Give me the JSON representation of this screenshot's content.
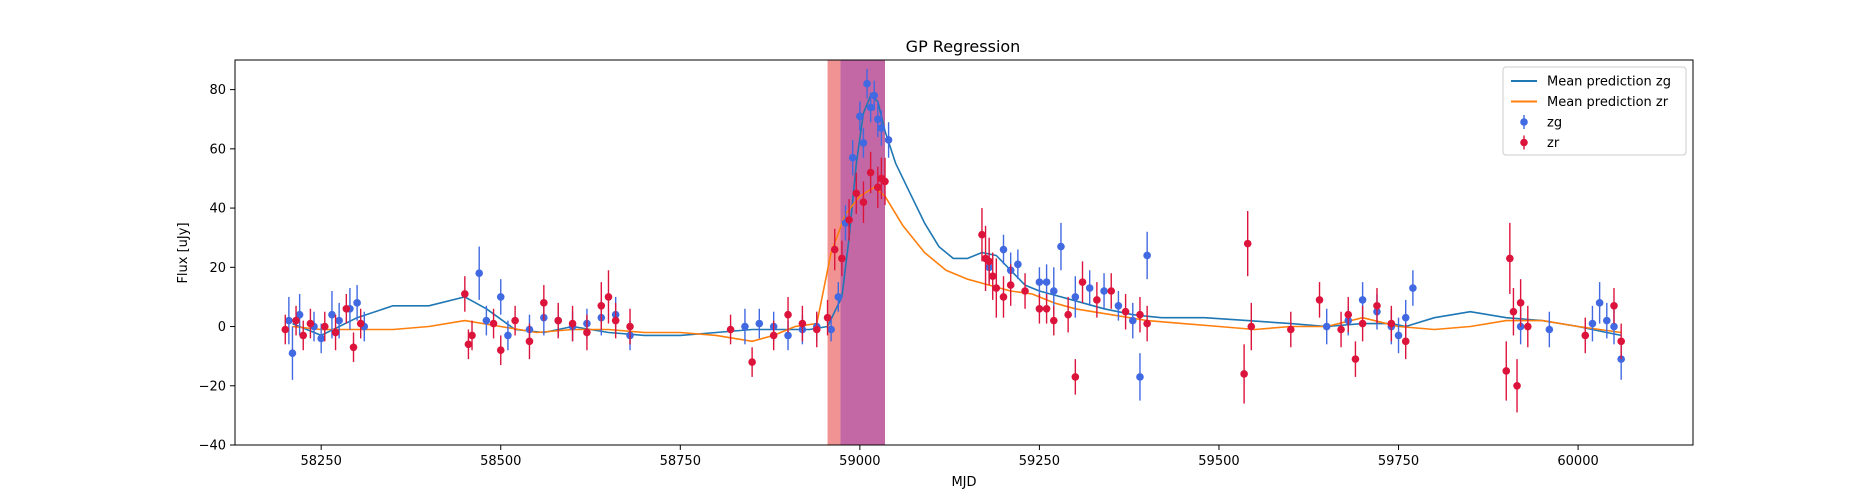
{
  "chart_data": {
    "type": "scatter",
    "title": "GP Regression",
    "xlabel": "MJD",
    "ylabel": "Flux [uJy]",
    "xlim": [
      58130,
      60160
    ],
    "ylim": [
      -40,
      90
    ],
    "xticks": [
      58250,
      58500,
      58750,
      59000,
      59250,
      59500,
      59750,
      60000
    ],
    "yticks": [
      -40,
      -20,
      0,
      20,
      40,
      60,
      80
    ],
    "grid": false,
    "legend": "top-right",
    "shaded_regions": [
      {
        "x0": 58955,
        "x1": 58973,
        "color": "#f08080",
        "opacity": 0.85
      },
      {
        "x0": 58973,
        "x1": 59035,
        "color": "#c060a0",
        "opacity": 0.95
      }
    ],
    "series": [
      {
        "name": "Mean prediction zg",
        "kind": "line",
        "color": "#1f77b4",
        "x": [
          58210,
          58250,
          58300,
          58350,
          58400,
          58450,
          58480,
          58520,
          58560,
          58600,
          58650,
          58700,
          58750,
          58800,
          58850,
          58900,
          58930,
          58955,
          58975,
          58985,
          58995,
          59005,
          59015,
          59025,
          59035,
          59050,
          59070,
          59090,
          59110,
          59130,
          59150,
          59170,
          59190,
          59210,
          59230,
          59250,
          59280,
          59310,
          59340,
          59380,
          59420,
          59480,
          59540,
          59600,
          59650,
          59700,
          59740,
          59760,
          59800,
          59850,
          59900,
          59950,
          60000,
          60040,
          60060
        ],
        "y": [
          1,
          -3,
          3,
          7,
          7,
          10,
          6,
          -1,
          -2,
          0,
          -2,
          -3,
          -3,
          -2,
          -1,
          -1,
          -1,
          0,
          10,
          30,
          55,
          72,
          78,
          76,
          66,
          55,
          45,
          35,
          27,
          23,
          23,
          25,
          24,
          19,
          14,
          12,
          10,
          8,
          6,
          4,
          3,
          3,
          2,
          1,
          0,
          1,
          1,
          0,
          3,
          5,
          3,
          2,
          0,
          -2,
          -3
        ]
      },
      {
        "name": "Mean prediction zr",
        "kind": "line",
        "color": "#ff7f0e",
        "x": [
          58210,
          58250,
          58300,
          58350,
          58400,
          58450,
          58500,
          58550,
          58600,
          58650,
          58700,
          58750,
          58800,
          58850,
          58880,
          58910,
          58940,
          58960,
          58980,
          59000,
          59020,
          59035,
          59060,
          59090,
          59120,
          59150,
          59180,
          59210,
          59240,
          59270,
          59300,
          59350,
          59400,
          59450,
          59500,
          59550,
          59600,
          59650,
          59700,
          59750,
          59800,
          59850,
          59900,
          59950,
          60000,
          60060
        ],
        "y": [
          0,
          -1,
          -1,
          -1,
          0,
          2,
          0,
          -2,
          -1,
          -1,
          -2,
          -2,
          -3,
          -5,
          -3,
          0,
          1,
          25,
          38,
          44,
          47,
          44,
          34,
          25,
          19,
          16,
          14,
          12,
          11,
          8,
          6,
          4,
          2,
          1,
          0,
          -1,
          0,
          0,
          3,
          0,
          -1,
          0,
          2,
          2,
          0,
          -2
        ]
      },
      {
        "name": "zg",
        "kind": "errorbar",
        "color": "#4169e1",
        "x": [
          58205,
          58210,
          58220,
          58240,
          58250,
          58265,
          58275,
          58290,
          58300,
          58310,
          58470,
          58480,
          58500,
          58510,
          58540,
          58560,
          58580,
          58600,
          58620,
          58640,
          58660,
          58680,
          58840,
          58860,
          58880,
          58900,
          58920,
          58940,
          58960,
          58970,
          58980,
          58990,
          59000,
          59005,
          59010,
          59015,
          59020,
          59025,
          59030,
          59040,
          59180,
          59200,
          59210,
          59220,
          59250,
          59260,
          59270,
          59280,
          59300,
          59320,
          59340,
          59360,
          59380,
          59390,
          59400,
          59650,
          59680,
          59700,
          59720,
          59740,
          59750,
          59760,
          59770,
          59920,
          59960,
          60020,
          60030,
          60040,
          60050,
          60060
        ],
        "y": [
          2,
          -9,
          4,
          0,
          -4,
          4,
          2,
          6,
          8,
          0,
          18,
          2,
          10,
          -3,
          -1,
          3,
          2,
          0,
          1,
          3,
          4,
          -3,
          0,
          1,
          0,
          -3,
          -1,
          0,
          -1,
          10,
          35,
          57,
          71,
          62,
          82,
          74,
          78,
          70,
          67,
          63,
          20,
          26,
          19,
          21,
          15,
          15,
          12,
          27,
          10,
          13,
          12,
          7,
          2,
          -17,
          24,
          0,
          2,
          9,
          5,
          0,
          -3,
          3,
          13,
          0,
          -1,
          1,
          8,
          2,
          0,
          -11
        ],
        "err": [
          8,
          9,
          7,
          5,
          5,
          8,
          6,
          7,
          6,
          5,
          9,
          5,
          6,
          5,
          5,
          6,
          5,
          5,
          5,
          6,
          6,
          5,
          6,
          5,
          5,
          5,
          5,
          5,
          4,
          5,
          6,
          6,
          5,
          5,
          5,
          5,
          5,
          6,
          6,
          6,
          5,
          5,
          6,
          5,
          5,
          6,
          8,
          8,
          7,
          6,
          6,
          5,
          6,
          8,
          8,
          6,
          5,
          6,
          6,
          6,
          6,
          6,
          6,
          6,
          6,
          6,
          7,
          6,
          6,
          7
        ]
      },
      {
        "name": "zr",
        "kind": "errorbar",
        "color": "#dc143c",
        "x": [
          58200,
          58215,
          58225,
          58235,
          58255,
          58270,
          58285,
          58295,
          58305,
          58450,
          58455,
          58460,
          58490,
          58500,
          58520,
          58540,
          58560,
          58580,
          58600,
          58620,
          58640,
          58650,
          58660,
          58680,
          58820,
          58850,
          58880,
          58900,
          58920,
          58940,
          58955,
          58965,
          58975,
          58985,
          58995,
          59005,
          59015,
          59025,
          59030,
          59035,
          59170,
          59175,
          59180,
          59185,
          59190,
          59200,
          59210,
          59230,
          59250,
          59260,
          59270,
          59290,
          59300,
          59310,
          59330,
          59350,
          59370,
          59390,
          59400,
          59535,
          59540,
          59545,
          59600,
          59640,
          59670,
          59680,
          59690,
          59700,
          59720,
          59740,
          59760,
          59900,
          59905,
          59910,
          59915,
          59920,
          59930,
          60010,
          60050,
          60060
        ],
        "y": [
          -1,
          2,
          -3,
          1,
          0,
          -2,
          6,
          -7,
          1,
          11,
          -6,
          -3,
          1,
          -8,
          2,
          -5,
          8,
          2,
          1,
          -2,
          7,
          10,
          2,
          0,
          -1,
          -12,
          -3,
          4,
          1,
          -1,
          3,
          26,
          23,
          36,
          45,
          42,
          52,
          47,
          50,
          49,
          31,
          23,
          22,
          17,
          13,
          10,
          14,
          12,
          6,
          6,
          2,
          4,
          -17,
          15,
          9,
          12,
          5,
          4,
          1,
          -16,
          28,
          0,
          -1,
          9,
          -1,
          4,
          -11,
          1,
          7,
          1,
          -5,
          -15,
          23,
          5,
          -20,
          8,
          0,
          -3,
          7,
          -5
        ],
        "err": [
          5,
          5,
          5,
          5,
          5,
          6,
          5,
          5,
          5,
          6,
          5,
          5,
          5,
          5,
          5,
          6,
          6,
          6,
          6,
          6,
          8,
          9,
          6,
          6,
          5,
          5,
          5,
          6,
          6,
          6,
          6,
          7,
          6,
          7,
          7,
          7,
          7,
          7,
          7,
          8,
          9,
          11,
          8,
          8,
          10,
          7,
          7,
          6,
          5,
          5,
          5,
          6,
          6,
          7,
          6,
          6,
          6,
          6,
          6,
          10,
          11,
          8,
          6,
          6,
          6,
          6,
          6,
          6,
          6,
          6,
          6,
          10,
          12,
          8,
          9,
          8,
          7,
          6,
          6,
          6
        ]
      }
    ]
  }
}
